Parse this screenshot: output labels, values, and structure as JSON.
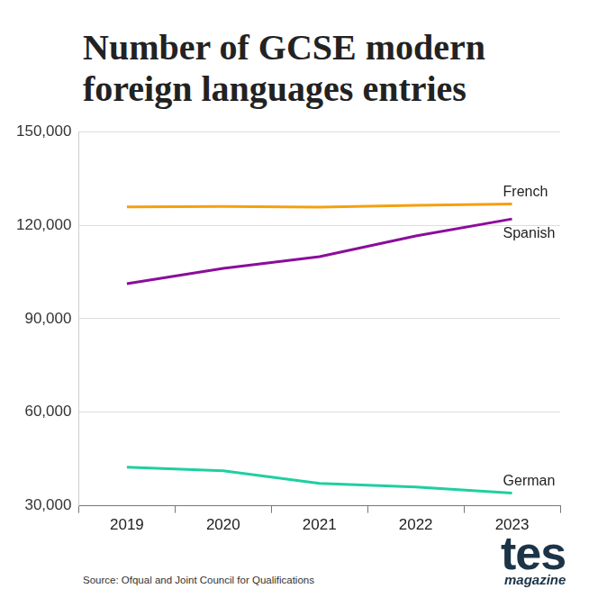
{
  "chart_data": {
    "type": "line",
    "title": "Number of GCSE modern foreign languages entries",
    "categories": [
      "2019",
      "2020",
      "2021",
      "2022",
      "2023"
    ],
    "series": [
      {
        "name": "French",
        "color": "#f5a00f",
        "values": [
          125900,
          126000,
          125800,
          126400,
          126800
        ]
      },
      {
        "name": "Spanish",
        "color": "#8b0d9b",
        "values": [
          101250,
          106150,
          109900,
          116550,
          122000
        ]
      },
      {
        "name": "German",
        "color": "#1fcfa0",
        "values": [
          42400,
          41250,
          37200,
          36050,
          34050
        ]
      }
    ],
    "ylim": [
      30000,
      150000
    ],
    "yticks": [
      {
        "value": 30000,
        "label": "30,000"
      },
      {
        "value": 60000,
        "label": "60,000"
      },
      {
        "value": 90000,
        "label": "90,000"
      },
      {
        "value": 120000,
        "label": "120,000"
      },
      {
        "value": 150000,
        "label": "150,000"
      }
    ],
    "grid": true,
    "source": "Source: Ofqual and Joint Council for Qualifications",
    "logo": [
      "tes",
      "magazine"
    ]
  }
}
